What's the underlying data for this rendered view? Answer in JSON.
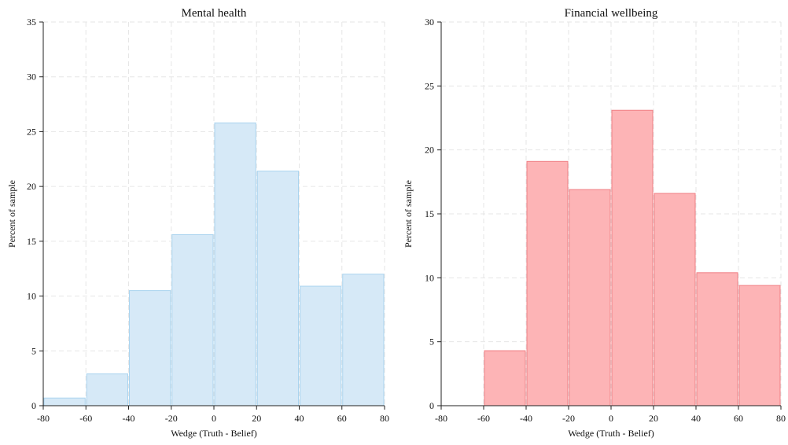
{
  "chart_data": [
    {
      "type": "bar",
      "title": "Mental health",
      "xlabel": "Wedge (Truth - Belief)",
      "ylabel": "Percent of sample",
      "xlim": [
        -80,
        80
      ],
      "ylim": [
        0,
        35
      ],
      "xticks": [
        -80,
        -60,
        -40,
        -20,
        0,
        20,
        40,
        60,
        80
      ],
      "yticks": [
        0,
        5,
        10,
        15,
        20,
        25,
        30,
        35
      ],
      "grid": true,
      "colors": {
        "fill": "#d6e9f7",
        "stroke": "#aad4ef"
      },
      "bins": [
        {
          "x0": -80,
          "x1": -60,
          "value": 0.7
        },
        {
          "x0": -60,
          "x1": -40,
          "value": 2.9
        },
        {
          "x0": -40,
          "x1": -20,
          "value": 10.5
        },
        {
          "x0": -20,
          "x1": 0,
          "value": 15.6
        },
        {
          "x0": 0,
          "x1": 20,
          "value": 25.8
        },
        {
          "x0": 20,
          "x1": 40,
          "value": 21.4
        },
        {
          "x0": 40,
          "x1": 60,
          "value": 10.9
        },
        {
          "x0": 60,
          "x1": 80,
          "value": 12.0
        }
      ]
    },
    {
      "type": "bar",
      "title": "Financial wellbeing",
      "xlabel": "Wedge (Truth - Belief)",
      "ylabel": "Percent of sample",
      "xlim": [
        -80,
        80
      ],
      "ylim": [
        0,
        30
      ],
      "xticks": [
        -80,
        -60,
        -40,
        -20,
        0,
        20,
        40,
        60,
        80
      ],
      "yticks": [
        0,
        5,
        10,
        15,
        20,
        25,
        30
      ],
      "grid": true,
      "colors": {
        "fill": "#fdb4b6",
        "stroke": "#f07f84"
      },
      "bins": [
        {
          "x0": -60,
          "x1": -40,
          "value": 4.3
        },
        {
          "x0": -40,
          "x1": -20,
          "value": 19.1
        },
        {
          "x0": -20,
          "x1": 0,
          "value": 16.9
        },
        {
          "x0": 0,
          "x1": 20,
          "value": 23.1
        },
        {
          "x0": 20,
          "x1": 40,
          "value": 16.6
        },
        {
          "x0": 40,
          "x1": 60,
          "value": 10.4
        },
        {
          "x0": 60,
          "x1": 80,
          "value": 9.4
        }
      ]
    }
  ]
}
